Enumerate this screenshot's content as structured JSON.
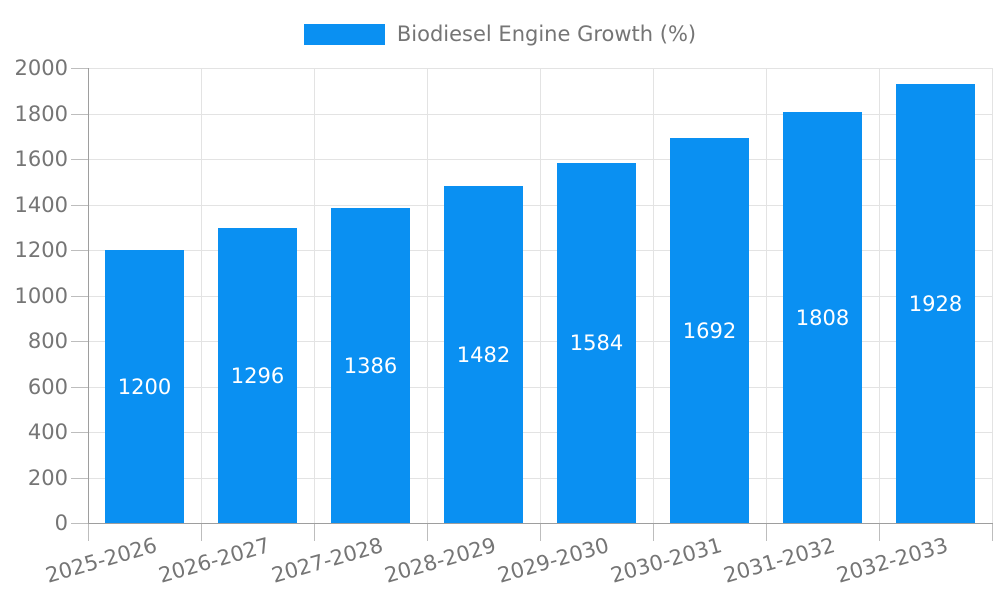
{
  "chart_data": {
    "type": "bar",
    "title": "",
    "legend": {
      "label": "Biodiesel Engine Growth (%)",
      "position": "top-center"
    },
    "categories": [
      "2025-2026",
      "2026-2027",
      "2027-2028",
      "2028-2029",
      "2029-2030",
      "2030-2031",
      "2031-2032",
      "2032-2033"
    ],
    "series": [
      {
        "name": "Biodiesel Engine Growth (%)",
        "values": [
          1200,
          1296,
          1386,
          1482,
          1584,
          1692,
          1808,
          1928
        ]
      }
    ],
    "xlabel": "",
    "ylabel": "",
    "ylim": [
      0,
      2000
    ],
    "ytick_step": 200,
    "yticks": [
      0,
      200,
      400,
      600,
      800,
      1000,
      1200,
      1400,
      1600,
      1800,
      2000
    ],
    "grid": true,
    "value_labels": "centered-inside-bars",
    "xtick_rotation_deg": -16,
    "colors": {
      "bar": "#0a90f2",
      "value_label_text": "#ffffff",
      "axis_text": "#757575",
      "axis_line": "#9e9e9e",
      "tick": "#bdbdbd",
      "gridline": "#e3e3e3",
      "background": "#ffffff"
    }
  }
}
